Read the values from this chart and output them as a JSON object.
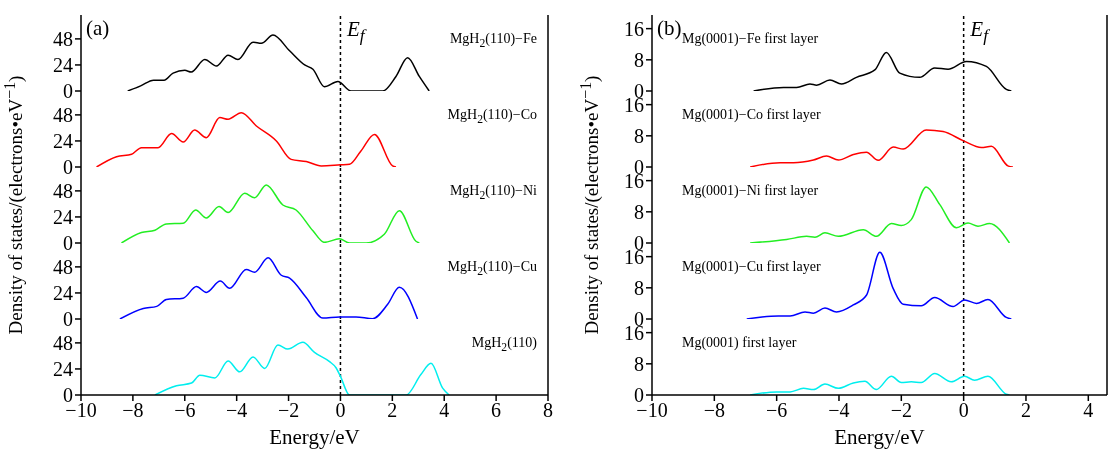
{
  "chart_data": [
    {
      "type": "line",
      "title": "(a)",
      "annotations": [
        "E$_{f}$"
      ],
      "xlim": [
        -10,
        8
      ],
      "xticks": [
        -10,
        -8,
        -6,
        -4,
        -2,
        0,
        2,
        4,
        6,
        8
      ],
      "ylim": [
        0,
        70
      ],
      "yticks": [
        0,
        24,
        48
      ],
      "tick_labels": "y",
      "ref_lines": [
        {
          "axis": "x",
          "value": 0,
          "color": "#000000",
          "line_style": "dotted"
        }
      ],
      "series": [
        {
          "name": "MgH$_{2}$(110)−Fe",
          "color": "#000000",
          "x": [
            -8.2,
            -7.7,
            -7.2,
            -6.8,
            -6.45,
            -6.0,
            -5.75,
            -5.23,
            -4.78,
            -4.33,
            -3.95,
            -3.37,
            -3.05,
            -2.6,
            -1.96,
            -1.38,
            -1.06,
            -0.62,
            -0.1,
            0.41,
            1.63,
            2.14,
            2.59,
            3.04,
            3.42
          ],
          "values": [
            0,
            4.7,
            10,
            10,
            16.5,
            19,
            17.5,
            29,
            23,
            33,
            29,
            45,
            44,
            51.5,
            37,
            24,
            20,
            4,
            8.8,
            0,
            0,
            13.4,
            30.6,
            13.4,
            0
          ]
        }
      ]
    },
    {
      "type": "line",
      "xlim": [
        -10,
        8
      ],
      "xticks": [
        -10,
        -8,
        -6,
        -4,
        -2,
        0,
        2,
        4,
        6,
        8
      ],
      "ylim": [
        0,
        70
      ],
      "yticks": [
        0,
        24,
        48
      ],
      "tick_labels": "y",
      "ref_lines": [
        {
          "axis": "x",
          "value": 0,
          "color": "#000000",
          "line_style": "dotted"
        }
      ],
      "series": [
        {
          "name": "MgH$_{2}$(110)−Co",
          "color": "#ff0000",
          "x": [
            -9.4,
            -8.63,
            -8.05,
            -7.67,
            -7.03,
            -6.51,
            -6.06,
            -5.62,
            -5.17,
            -4.65,
            -4.33,
            -3.82,
            -3.24,
            -2.47,
            -1.9,
            -1.32,
            -0.74,
            0,
            0.35,
            0.79,
            1.31,
            2.01,
            2.14
          ],
          "values": [
            0,
            9.5,
            11.7,
            17.8,
            17.8,
            30.8,
            23,
            34,
            27,
            45.5,
            44,
            50,
            37.8,
            24,
            7,
            5,
            1,
            2,
            2.5,
            14.8,
            30,
            1,
            0
          ]
        }
      ]
    },
    {
      "type": "line",
      "ylabel": "Density of states/(electrons•eV$^{−1}$)",
      "xlim": [
        -10,
        8
      ],
      "xticks": [
        -10,
        -8,
        -6,
        -4,
        -2,
        0,
        2,
        4,
        6,
        8
      ],
      "ylim": [
        0,
        70
      ],
      "yticks": [
        0,
        24,
        48
      ],
      "tick_labels": "y",
      "ref_lines": [
        {
          "axis": "x",
          "value": 0,
          "color": "#000000",
          "line_style": "dotted"
        }
      ],
      "series": [
        {
          "name": "MgH$_{2}$(110)−Ni",
          "color": "#22ee22",
          "x": [
            -8.44,
            -7.67,
            -7.15,
            -6.71,
            -6.06,
            -5.58,
            -5.17,
            -4.68,
            -4.33,
            -3.69,
            -3.31,
            -2.86,
            -2.22,
            -1.71,
            -1.06,
            -0.62,
            -0.04,
            0.35,
            0.99,
            1.69,
            2.27,
            2.91,
            3.04
          ],
          "values": [
            0,
            9.6,
            11.8,
            17.6,
            18.2,
            30.4,
            23,
            33.6,
            28,
            45.8,
            41.6,
            53.4,
            35,
            30.4,
            11.2,
            0.6,
            3.8,
            0,
            0,
            8,
            29.8,
            1.6,
            0
          ]
        }
      ]
    },
    {
      "type": "line",
      "xlim": [
        -10,
        8
      ],
      "xticks": [
        -10,
        -8,
        -6,
        -4,
        -2,
        0,
        2,
        4,
        6,
        8
      ],
      "ylim": [
        0,
        70
      ],
      "yticks": [
        0,
        24,
        48
      ],
      "tick_labels": "y",
      "ref_lines": [
        {
          "axis": "x",
          "value": 0,
          "color": "#000000",
          "line_style": "dotted"
        }
      ],
      "series": [
        {
          "name": "MgH$_{2}$(110)−Cu",
          "color": "#0000ff",
          "x": [
            -8.5,
            -7.6,
            -7.08,
            -6.71,
            -6.06,
            -5.55,
            -5.17,
            -4.63,
            -4.27,
            -3.63,
            -3.31,
            -2.79,
            -2.28,
            -1.96,
            -1.32,
            -0.68,
            -0.04,
            0.6,
            1.24,
            1.82,
            2.27,
            2.97
          ],
          "values": [
            0,
            9.7,
            11.6,
            17.9,
            19.2,
            29.9,
            24.5,
            34.9,
            28.3,
            45.6,
            43.1,
            56.3,
            40.3,
            37.7,
            19.8,
            0.9,
            1.9,
            1.9,
            0.3,
            13.5,
            29.2,
            0
          ]
        }
      ]
    },
    {
      "type": "line",
      "xlabel": "Energy/eV",
      "xlim": [
        -10,
        8
      ],
      "xticks": [
        -10,
        -8,
        -6,
        -4,
        -2,
        0,
        2,
        4,
        6,
        8
      ],
      "ylim": [
        0,
        70
      ],
      "yticks": [
        0,
        24,
        48
      ],
      "ref_lines": [
        {
          "axis": "x",
          "value": 0,
          "color": "#000000",
          "line_style": "dotted"
        }
      ],
      "series": [
        {
          "name": "MgH$_{2}$(110)",
          "color": "#00eeee",
          "x": [
            -7.15,
            -6.32,
            -5.74,
            -5.42,
            -4.84,
            -4.33,
            -3.88,
            -3.37,
            -2.92,
            -2.41,
            -2.03,
            -1.45,
            -1.0,
            -0.42,
            -0.17,
            0,
            0.35,
            2.53,
            3.1,
            3.49,
            3.94,
            4.19
          ],
          "values": [
            0,
            8.5,
            11,
            18.2,
            15.7,
            31.3,
            21.3,
            35.1,
            24.5,
            46.1,
            42.3,
            48.6,
            39.2,
            30.7,
            25.1,
            17.2,
            0,
            0,
            18.8,
            29.2,
            6.3,
            0
          ]
        }
      ]
    },
    {
      "type": "line",
      "title": "(b)",
      "annotations": [
        "E$_{f}$"
      ],
      "xlim": [
        -10,
        4.6
      ],
      "xticks": [
        -10,
        -8,
        -6,
        -4,
        -2,
        0,
        2,
        4
      ],
      "ylim": [
        0,
        19.5
      ],
      "yticks": [
        0,
        8,
        16
      ],
      "tick_labels": "y",
      "ref_lines": [
        {
          "axis": "x",
          "value": 0,
          "color": "#000000",
          "line_style": "dotted"
        }
      ],
      "series": [
        {
          "name": "Mg(0001)−Fe first layer",
          "color": "#000000",
          "x": [
            -6.74,
            -5.78,
            -5.36,
            -4.93,
            -4.72,
            -4.29,
            -3.92,
            -3.44,
            -2.85,
            -2.48,
            -2.05,
            -1.41,
            -0.93,
            -0.5,
            0.09,
            0.73,
            1.37,
            1.53
          ],
          "values": [
            0,
            0.9,
            0.9,
            1.8,
            1.5,
            2.8,
            1.8,
            3.5,
            5.4,
            9.9,
            4.6,
            3.5,
            5.9,
            5.6,
            7.6,
            6.3,
            0.4,
            0
          ]
        }
      ]
    },
    {
      "type": "line",
      "xlim": [
        -10,
        4.6
      ],
      "xticks": [
        -10,
        -8,
        -6,
        -4,
        -2,
        0,
        2,
        4
      ],
      "ylim": [
        0,
        19.5
      ],
      "yticks": [
        0,
        8,
        16
      ],
      "tick_labels": "y",
      "ref_lines": [
        {
          "axis": "x",
          "value": 0,
          "color": "#000000",
          "line_style": "dotted"
        }
      ],
      "series": [
        {
          "name": "Mg(0001)−Co first layer",
          "color": "#ff0000",
          "x": [
            -6.85,
            -5.89,
            -5.46,
            -4.82,
            -4.4,
            -4.02,
            -3.54,
            -3.12,
            -2.74,
            -2.26,
            -1.94,
            -1.2,
            -0.66,
            0,
            0.57,
            0.89,
            1.42,
            1.58
          ],
          "values": [
            0,
            1.1,
            1.1,
            1.8,
            2.8,
            1.8,
            3.2,
            3.8,
            1.7,
            5.1,
            4.6,
            9.5,
            9.1,
            6.7,
            5.0,
            5.3,
            0.3,
            0
          ]
        }
      ]
    },
    {
      "type": "line",
      "ylabel": "Density of states/(electrons•eV$^{−1}$)",
      "xlim": [
        -10,
        4.6
      ],
      "xticks": [
        -10,
        -8,
        -6,
        -4,
        -2,
        0,
        2,
        4
      ],
      "ylim": [
        0,
        19.5
      ],
      "yticks": [
        0,
        8,
        16
      ],
      "tick_labels": "y",
      "ref_lines": [
        {
          "axis": "x",
          "value": 0,
          "color": "#000000",
          "line_style": "dotted"
        }
      ],
      "series": [
        {
          "name": "Mg(0001)−Ni first layer",
          "color": "#22ee22",
          "x": [
            -6.85,
            -5.68,
            -5.04,
            -4.77,
            -4.45,
            -4.02,
            -3.22,
            -2.8,
            -2.32,
            -2.0,
            -1.68,
            -1.2,
            -0.77,
            -0.23,
            0.14,
            0.46,
            0.83,
            1.47
          ],
          "values": [
            0,
            0.9,
            1.7,
            1.5,
            2.6,
            1.7,
            3.4,
            1.7,
            5,
            4.5,
            6,
            14.4,
            9.9,
            3.9,
            5.1,
            4.3,
            5,
            0
          ]
        }
      ]
    },
    {
      "type": "line",
      "xlim": [
        -10,
        4.6
      ],
      "xticks": [
        -10,
        -8,
        -6,
        -4,
        -2,
        0,
        2,
        4
      ],
      "ylim": [
        0,
        19.5
      ],
      "yticks": [
        0,
        8,
        16
      ],
      "tick_labels": "y",
      "ref_lines": [
        {
          "axis": "x",
          "value": 0,
          "color": "#000000",
          "line_style": "dotted"
        }
      ],
      "series": [
        {
          "name": "Mg(0001)−Cu first layer",
          "color": "#0000ff",
          "x": [
            -6.96,
            -5.95,
            -5.57,
            -5.09,
            -4.82,
            -4.45,
            -4.08,
            -3.54,
            -3.12,
            -2.69,
            -2.26,
            -1.94,
            -1.36,
            -0.93,
            -0.34,
            0.03,
            0.41,
            0.78,
            1.37,
            1.53
          ],
          "values": [
            0,
            0.8,
            0.8,
            1.8,
            1.5,
            2.8,
            1.8,
            3.6,
            6.1,
            17.1,
            7.8,
            3.8,
            3.4,
            5.5,
            3.2,
            4.9,
            4.0,
            5.0,
            0.4,
            0
          ]
        }
      ]
    },
    {
      "type": "line",
      "xlabel": "Energy/eV",
      "xlim": [
        -10,
        4.6
      ],
      "xticks": [
        -10,
        -8,
        -6,
        -4,
        -2,
        0,
        2,
        4
      ],
      "ylim": [
        0,
        19.5
      ],
      "yticks": [
        0,
        8,
        16
      ],
      "ref_lines": [
        {
          "axis": "x",
          "value": 0,
          "color": "#000000",
          "line_style": "dotted"
        }
      ],
      "series": [
        {
          "name": "Mg(0001) first layer",
          "color": "#00eeee",
          "x": [
            -6.85,
            -6.0,
            -5.57,
            -5.14,
            -4.82,
            -4.45,
            -4.02,
            -3.54,
            -3.17,
            -2.8,
            -2.32,
            -2.0,
            -1.68,
            -1.36,
            -0.93,
            -0.4,
            0.03,
            0.35,
            0.78,
            1.37,
            1.47
          ],
          "values": [
            0,
            0.8,
            0.8,
            1.7,
            1.4,
            2.8,
            1.7,
            3.1,
            3.5,
            1.4,
            4.8,
            3.2,
            3.4,
            3.2,
            5.5,
            3.4,
            4.8,
            3.8,
            4.8,
            0.2,
            0
          ]
        }
      ]
    }
  ]
}
